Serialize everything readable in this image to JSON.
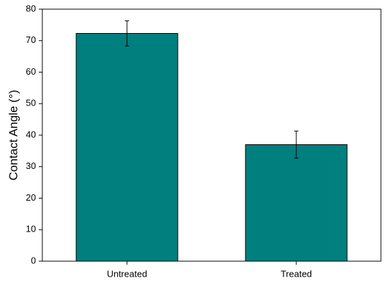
{
  "chart_data": {
    "type": "bar",
    "categories": [
      "Untreated",
      "Treated"
    ],
    "values": [
      72.3,
      37.0
    ],
    "errors": [
      4.0,
      4.3
    ],
    "color": "#007f7f",
    "ylabel": "Contact Angle (°)",
    "ylim": [
      0,
      80
    ],
    "yticks": [
      0,
      10,
      20,
      30,
      40,
      50,
      60,
      70,
      80
    ]
  }
}
